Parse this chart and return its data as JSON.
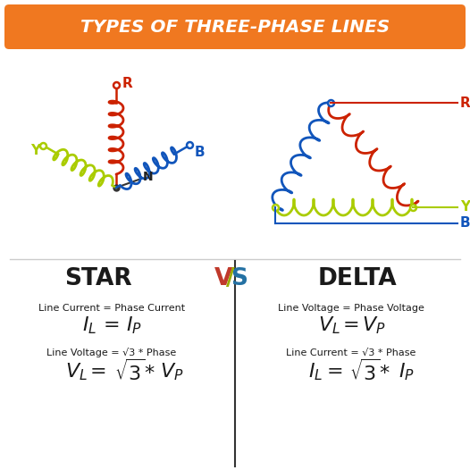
{
  "title": "TYPES OF THREE-PHASE LINES",
  "title_bg": "#F07820",
  "title_color": "#FFFFFF",
  "bg_color": "#FFFFFF",
  "star_label": "STAR",
  "delta_label": "DELTA",
  "vs_color_v": "#C0392B",
  "vs_color_s": "#2471A3",
  "vs_color_slash": "#9AAB00",
  "star_eq1_small": "Line Current = Phase Current",
  "star_eq1_big": "IL  =  IP",
  "star_eq2_small": "Line Voltage = √3 * Phase",
  "star_eq2_big": "VL  =  √3 * VP",
  "delta_eq1_small": "Line Voltage = Phase Voltage",
  "delta_eq1_big": "VL  =  VP",
  "delta_eq2_small": "Line Current = √3 * Phase",
  "delta_eq2_big": "IL  =  √3 * IP",
  "color_red": "#CC2200",
  "color_blue": "#1155BB",
  "color_yellow": "#AACC00",
  "text_dark": "#1A1A1A"
}
